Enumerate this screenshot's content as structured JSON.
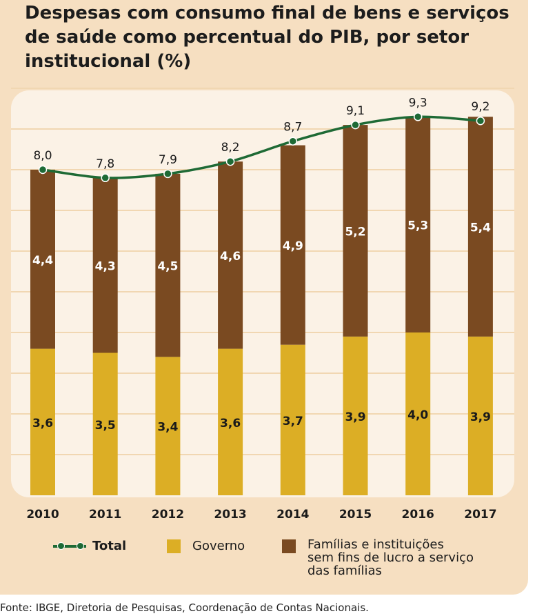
{
  "chart_data": {
    "type": "bar",
    "stacked": true,
    "title": "Despesas com consumo final de bens e serviços de saúde como percentual do PIB, por setor institucional (%)",
    "categories": [
      "2010",
      "2011",
      "2012",
      "2013",
      "2014",
      "2015",
      "2016",
      "2017"
    ],
    "series": [
      {
        "name": "Governo",
        "type": "bar",
        "color": "#dcae25",
        "values": [
          3.6,
          3.5,
          3.4,
          3.6,
          3.7,
          3.9,
          4.0,
          3.9
        ],
        "labels": [
          "3,6",
          "3,5",
          "3,4",
          "3,6",
          "3,7",
          "3,9",
          "4,0",
          "3,9"
        ]
      },
      {
        "name": "Famílias e instituições sem fins de lucro a serviço das famílias",
        "type": "bar",
        "color": "#7a4a21",
        "values": [
          4.4,
          4.3,
          4.5,
          4.6,
          4.9,
          5.2,
          5.3,
          5.4
        ],
        "labels": [
          "4,4",
          "4,3",
          "4,5",
          "4,6",
          "4,9",
          "5,2",
          "5,3",
          "5,4"
        ]
      },
      {
        "name": "Total",
        "type": "line",
        "color": "#1e6a35",
        "values": [
          8.0,
          7.8,
          7.9,
          8.2,
          8.7,
          9.1,
          9.3,
          9.2
        ],
        "labels": [
          "8,0",
          "7,8",
          "7,9",
          "8,2",
          "8,7",
          "9,1",
          "9,3",
          "9,2"
        ]
      }
    ],
    "ylim": [
      0,
      10
    ],
    "grid": true,
    "legend": {
      "placement": "bottom",
      "items": [
        {
          "label": "Total",
          "lines": [
            "Total"
          ]
        },
        {
          "label": "Governo",
          "lines": [
            "Governo"
          ]
        },
        {
          "label": "Famílias e instituições sem fins de lucro a serviço das famílias",
          "lines": [
            "Famílias e instituições",
            "sem fins de lucro a serviço",
            "das famílias"
          ]
        }
      ]
    },
    "source": "Fonte: IBGE, Diretoria de Pesquisas, Coordenação de Contas Nacionais."
  }
}
